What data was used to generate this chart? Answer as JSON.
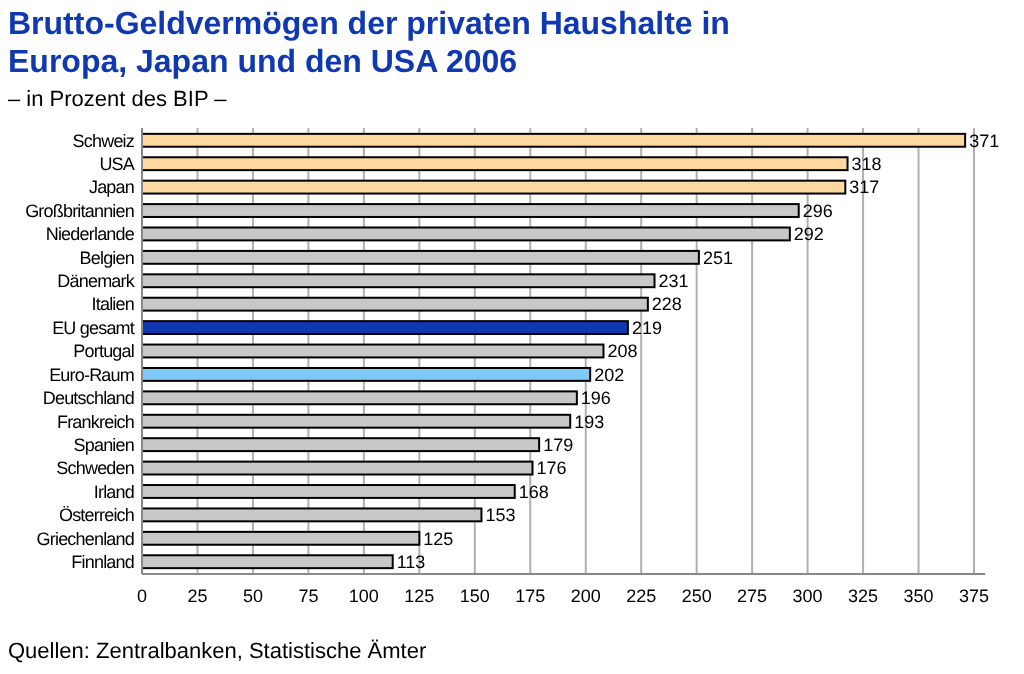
{
  "chart_data": {
    "type": "bar",
    "orientation": "horizontal",
    "title": "Brutto-Geldvermögen der privaten Haushalte in Europa, Japan und den USA 2006",
    "subtitle": "– in Prozent des BIP –",
    "categories": [
      "Schweiz",
      "USA",
      "Japan",
      "Großbritannien",
      "Niederlande",
      "Belgien",
      "Dänemark",
      "Italien",
      "EU gesamt",
      "Portugal",
      "Euro-Raum",
      "Deutschland",
      "Frankreich",
      "Spanien",
      "Schweden",
      "Irland",
      "Österreich",
      "Griechenland",
      "Finnland"
    ],
    "values": [
      371,
      318,
      317,
      296,
      292,
      251,
      231,
      228,
      219,
      208,
      202,
      196,
      193,
      179,
      176,
      168,
      153,
      125,
      113
    ],
    "colors": [
      "#ffd8a0",
      "#ffd8a0",
      "#ffd8a0",
      "#c8c8c8",
      "#c8c8c8",
      "#c8c8c8",
      "#c8c8c8",
      "#c8c8c8",
      "#1038b0",
      "#c8c8c8",
      "#80c8f8",
      "#c8c8c8",
      "#c8c8c8",
      "#c8c8c8",
      "#c8c8c8",
      "#c8c8c8",
      "#c8c8c8",
      "#c8c8c8",
      "#c8c8c8"
    ],
    "xlim": [
      0,
      380
    ],
    "xticks": [
      0,
      25,
      50,
      75,
      100,
      125,
      150,
      175,
      200,
      225,
      250,
      275,
      300,
      325,
      350,
      375
    ],
    "grid": "x",
    "data_labels": true,
    "annotations": [
      "Quellen: Zentralbanken, Statistische Ämter"
    ]
  }
}
